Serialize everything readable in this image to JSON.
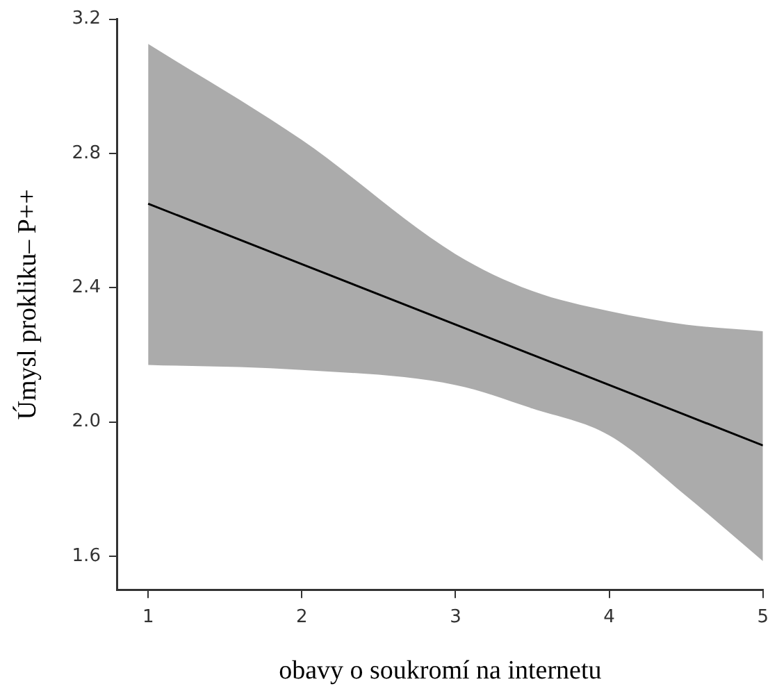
{
  "chart_data": {
    "type": "line",
    "xlabel": "obavy o soukromí na internetu",
    "ylabel": "Úmysl prokliku– P++",
    "x": [
      1,
      2,
      3,
      3.5,
      4,
      4.5,
      5
    ],
    "series": [
      {
        "color": "#000000",
        "values": [
          2.65,
          2.47,
          2.29,
          2.2,
          2.11,
          2.02,
          1.93
        ],
        "lower": [
          2.17,
          2.155,
          2.11,
          2.04,
          1.96,
          1.78,
          1.585
        ],
        "upper": [
          3.126,
          2.84,
          2.5,
          2.39,
          2.33,
          2.29,
          2.27
        ]
      }
    ],
    "xlim": [
      0.8,
      5
    ],
    "xticks": [
      1,
      2,
      3,
      4,
      5
    ],
    "ylim": [
      1.5,
      3.2
    ],
    "yticks": [
      1.6,
      {
        "value": 2,
        "label": "2.0"
      },
      2.4,
      2.8,
      3.2
    ],
    "grid": false,
    "legend": false,
    "marker": "none",
    "line_style": "solid"
  }
}
